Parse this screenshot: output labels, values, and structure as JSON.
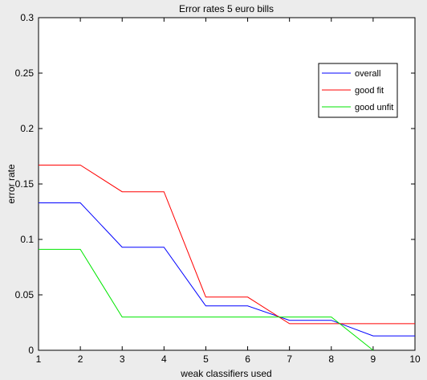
{
  "chart_data": {
    "type": "line",
    "title": "Error rates 5 euro bills",
    "xlabel": "weak classifiers used",
    "ylabel": "error rate",
    "xlim": [
      1,
      10
    ],
    "ylim": [
      0,
      0.3
    ],
    "xticks": [
      1,
      2,
      3,
      4,
      5,
      6,
      7,
      8,
      9,
      10
    ],
    "yticks": [
      0,
      0.05,
      0.1,
      0.15,
      0.2,
      0.25,
      0.3
    ],
    "ytick_labels": [
      "0",
      "0.05",
      "0.1",
      "0.15",
      "0.2",
      "0.25",
      "0.3"
    ],
    "grid": false,
    "legend_position": "top-right",
    "series": [
      {
        "name": "overall",
        "color": "#0000ff",
        "x": [
          1,
          2,
          3,
          4,
          5,
          6,
          7,
          8,
          9,
          10
        ],
        "y": [
          0.133,
          0.133,
          0.093,
          0.093,
          0.04,
          0.04,
          0.027,
          0.027,
          0.013,
          0.013
        ]
      },
      {
        "name": "good fit",
        "color": "#ff0000",
        "x": [
          1,
          2,
          3,
          4,
          5,
          6,
          7,
          8,
          9,
          10
        ],
        "y": [
          0.167,
          0.167,
          0.143,
          0.143,
          0.048,
          0.048,
          0.024,
          0.024,
          0.024,
          0.024
        ]
      },
      {
        "name": "good unfit",
        "color": "#00e600",
        "x": [
          1,
          2,
          3,
          4,
          5,
          6,
          7,
          8,
          9
        ],
        "y": [
          0.091,
          0.091,
          0.03,
          0.03,
          0.03,
          0.03,
          0.03,
          0.03,
          0
        ]
      }
    ]
  }
}
